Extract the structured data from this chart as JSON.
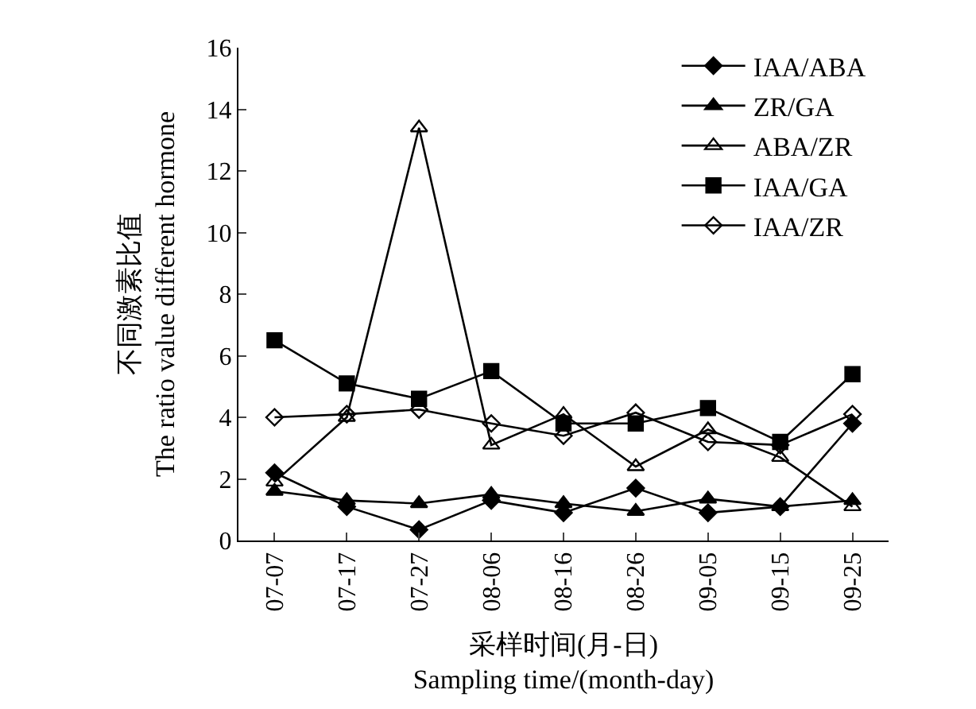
{
  "chart_data": {
    "type": "line",
    "xlabel": "采样时间(月-日)\nSampling time/(month-day)",
    "ylabel": "不同激素比值\nThe ratio value different hormone",
    "categories": [
      "07-07",
      "07-17",
      "07-27",
      "08-06",
      "08-16",
      "08-26",
      "09-05",
      "09-15",
      "09-25"
    ],
    "ylim": [
      0,
      16
    ],
    "yticks": [
      0,
      2,
      4,
      6,
      8,
      10,
      12,
      14,
      16
    ],
    "legend": "top right",
    "series": [
      {
        "name": "IAA/ABA",
        "color": "#000000",
        "marker": "diamond",
        "values": [
          2.2,
          1.1,
          0.35,
          1.3,
          0.9,
          1.7,
          0.9,
          1.1,
          3.8
        ]
      },
      {
        "name": "ZR/GA",
        "color": "#000000",
        "marker": "triangle",
        "values": [
          1.6,
          1.3,
          1.2,
          1.5,
          1.2,
          0.95,
          1.35,
          1.1,
          1.3
        ]
      },
      {
        "name": "ABA/ZR",
        "color": "#000000",
        "marker": "triangle-open",
        "values": [
          1.9,
          4.0,
          13.4,
          3.1,
          4.1,
          2.4,
          3.6,
          2.7,
          1.1
        ]
      },
      {
        "name": "IAA/GA",
        "color": "#000000",
        "marker": "square",
        "values": [
          6.5,
          5.1,
          4.6,
          5.5,
          3.8,
          3.8,
          4.3,
          3.2,
          5.4
        ]
      },
      {
        "name": "IAA/ZR",
        "color": "#000000",
        "marker": "diamond-open",
        "values": [
          4.0,
          4.1,
          4.25,
          3.8,
          3.4,
          4.15,
          3.2,
          3.1,
          4.1
        ]
      }
    ]
  }
}
